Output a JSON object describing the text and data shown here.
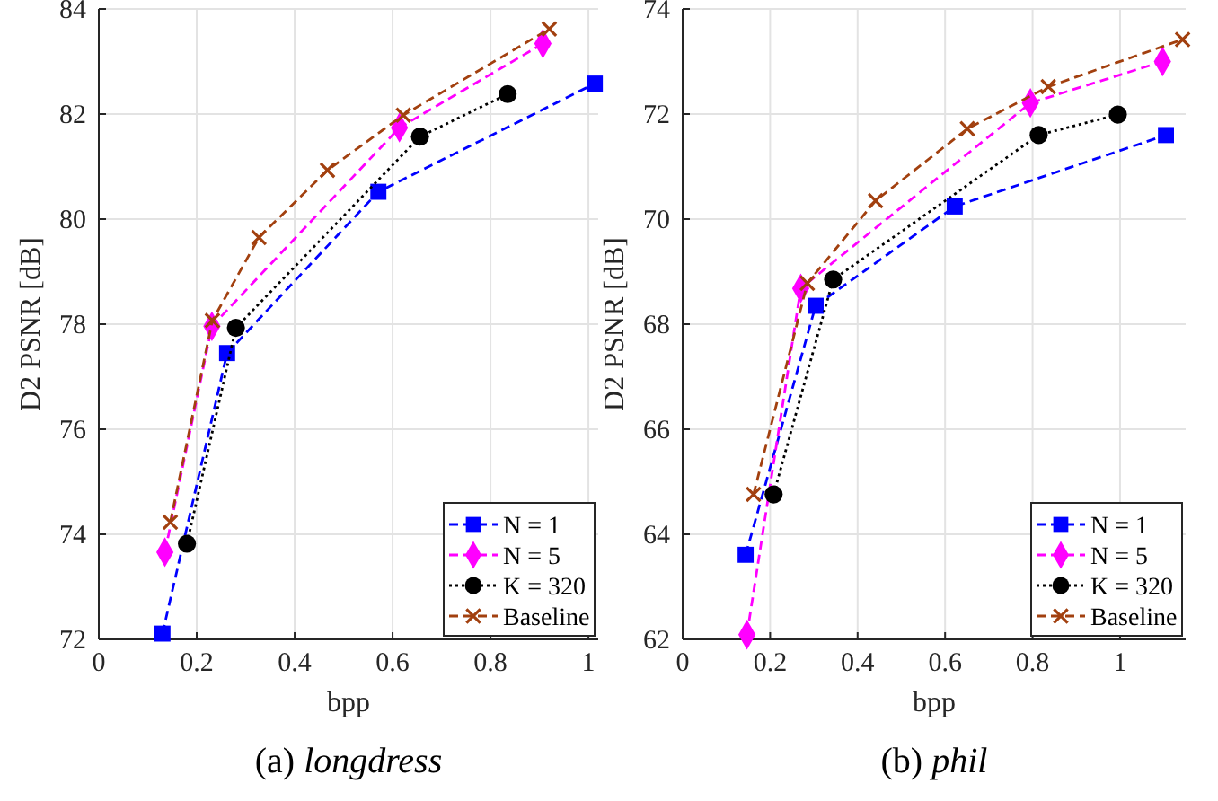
{
  "chart_data": [
    {
      "type": "line",
      "title": "(a) longdress",
      "xlabel": "bpp",
      "ylabel": "D2 PSNR [dB]",
      "xlim": [
        0,
        1.02
      ],
      "ylim": [
        72,
        84
      ],
      "xticks": [
        0,
        0.2,
        0.4,
        0.6,
        0.8,
        1
      ],
      "yticks": [
        72,
        74,
        76,
        78,
        80,
        82,
        84
      ],
      "grid": true,
      "legend": "bottom right",
      "series": [
        {
          "name": "N = 1",
          "color": "#0000ff",
          "marker": "square",
          "line_style": "dashed",
          "x": [
            0.13,
            0.262,
            0.571,
            1.013
          ],
          "values": [
            72.11,
            77.45,
            80.52,
            82.58
          ]
        },
        {
          "name": "N = 5",
          "color": "#ff00ff",
          "marker": "diamond",
          "line_style": "dashed",
          "x": [
            0.135,
            0.231,
            0.614,
            0.907
          ],
          "values": [
            73.66,
            77.96,
            81.74,
            83.34
          ]
        },
        {
          "name": "K = 320",
          "color": "#000000",
          "marker": "circle",
          "line_style": "dotted",
          "x": [
            0.18,
            0.28,
            0.656,
            0.835
          ],
          "values": [
            73.82,
            77.93,
            81.57,
            82.38
          ]
        },
        {
          "name": "Baseline",
          "color": "#a2400f",
          "marker": "cross",
          "line_style": "dashed",
          "x": [
            0.146,
            0.232,
            0.327,
            0.467,
            0.622,
            0.92
          ],
          "values": [
            74.23,
            78.07,
            79.65,
            80.93,
            81.98,
            83.62
          ]
        }
      ]
    },
    {
      "type": "line",
      "title": "(b) phil",
      "xlabel": "bpp",
      "ylabel": "D2 PSNR [dB]",
      "xlim": [
        0,
        1.15
      ],
      "ylim": [
        62,
        74
      ],
      "xticks": [
        0,
        0.2,
        0.4,
        0.6,
        0.8,
        1
      ],
      "yticks": [
        62,
        64,
        66,
        68,
        70,
        72,
        74
      ],
      "grid": true,
      "legend": "bottom right",
      "series": [
        {
          "name": "N = 1",
          "color": "#0000ff",
          "marker": "square",
          "line_style": "dashed",
          "x": [
            0.144,
            0.304,
            0.622,
            1.105
          ],
          "values": [
            63.61,
            68.35,
            70.24,
            71.6
          ]
        },
        {
          "name": "N = 5",
          "color": "#ff00ff",
          "marker": "diamond",
          "line_style": "dashed",
          "x": [
            0.147,
            0.27,
            0.795,
            1.097
          ],
          "values": [
            62.09,
            68.68,
            72.21,
            73.0
          ]
        },
        {
          "name": "K = 320",
          "color": "#000000",
          "marker": "circle",
          "line_style": "dotted",
          "x": [
            0.208,
            0.344,
            0.814,
            0.995
          ],
          "values": [
            64.76,
            68.85,
            71.6,
            71.99
          ]
        },
        {
          "name": "Baseline",
          "color": "#a2400f",
          "marker": "cross",
          "line_style": "dashed",
          "x": [
            0.162,
            0.285,
            0.441,
            0.651,
            0.836,
            1.143
          ],
          "values": [
            64.76,
            68.78,
            70.35,
            71.72,
            72.52,
            73.42
          ]
        }
      ]
    }
  ]
}
